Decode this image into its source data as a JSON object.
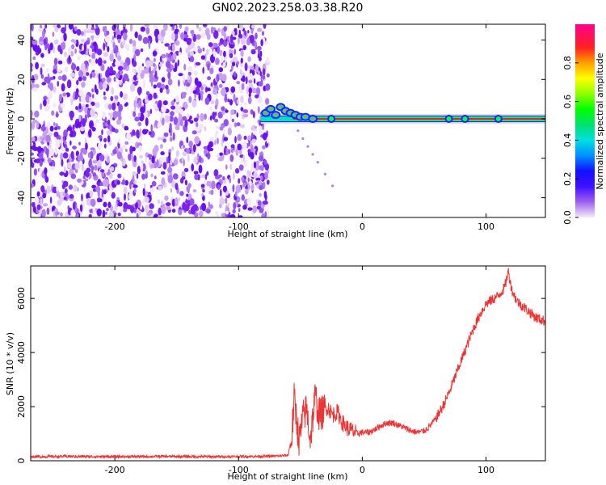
{
  "title": "GN02.2023.258.03.38.R20",
  "chart_data": [
    {
      "type": "heatmap",
      "xlabel": "Height of straight line (km)",
      "ylabel": "Frequency (Hz)",
      "xlim": [
        -268,
        148
      ],
      "ylim": [
        -50,
        48
      ],
      "xticks": [
        -200,
        -100,
        0,
        100
      ],
      "yticks": [
        -40,
        -20,
        0,
        20,
        40
      ],
      "colorbar": {
        "label": "Normalized spectral amplitude",
        "range": [
          0,
          1
        ],
        "ticks": [
          0.0,
          0.2,
          0.4,
          0.6,
          0.8
        ]
      },
      "noise_region_x": [
        -268,
        -76
      ],
      "signal_band_hz": 0,
      "signal_start_x": -82,
      "grid": false
    },
    {
      "type": "line",
      "xlabel": "Height of straight line (km)",
      "ylabel": "SNR (10 * v/v)",
      "xlim": [
        -268,
        148
      ],
      "ylim": [
        0,
        7200
      ],
      "xticks": [
        -200,
        -100,
        0,
        100
      ],
      "yticks": [
        0,
        2000,
        4000,
        6000
      ],
      "color": "#ee3333",
      "grid": false,
      "series": [
        {
          "x": [
            -268,
            -240,
            -200,
            -160,
            -120,
            -90,
            -70,
            -60,
            -57,
            -55,
            -53,
            -51,
            -48,
            -45,
            -42,
            -38,
            -35,
            -32,
            -28,
            -24,
            -20,
            -16,
            -12,
            -8,
            -4,
            0,
            5,
            10,
            15,
            20,
            25,
            30,
            35,
            40,
            45,
            50,
            55,
            60,
            65,
            70,
            75,
            80,
            85,
            90,
            95,
            100,
            105,
            110,
            115,
            118,
            121,
            125,
            130,
            135,
            140,
            148
          ],
          "values": [
            150,
            160,
            150,
            160,
            150,
            160,
            170,
            200,
            900,
            2300,
            1500,
            700,
            1600,
            1900,
            800,
            2400,
            1700,
            1800,
            2000,
            1700,
            1800,
            1400,
            1200,
            1100,
            1000,
            1050,
            1050,
            1150,
            1300,
            1400,
            1400,
            1300,
            1200,
            1100,
            1050,
            1100,
            1300,
            1600,
            2000,
            2500,
            3100,
            3700,
            4300,
            4900,
            5400,
            5800,
            5950,
            6100,
            6400,
            7000,
            6300,
            5900,
            5700,
            5500,
            5300,
            5150
          ]
        }
      ]
    }
  ]
}
